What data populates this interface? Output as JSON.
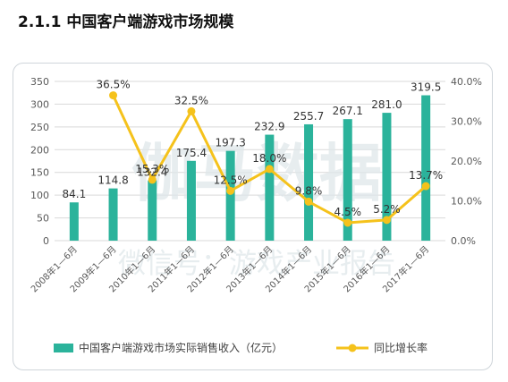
{
  "title": "2.1.1 中国客户端游戏市场规模",
  "watermark": {
    "line1": "伽马数据",
    "line2": "微信号：游戏产业报告"
  },
  "colors": {
    "bar": "#2bb39b",
    "line": "#f5c21b",
    "grid": "#d9d9d9",
    "text": "#595959"
  },
  "chart_data": {
    "type": "bar+line",
    "categories": [
      "2008年1—6月",
      "2009年1—6月",
      "2010年1—6月",
      "2011年1—6月",
      "2012年1—6月",
      "2013年1—6月",
      "2014年1—6月",
      "2015年1—6月",
      "2016年1—6月",
      "2017年1—6月"
    ],
    "series": [
      {
        "name": "中国客户端游戏市场实际销售收入（亿元）",
        "type": "bar",
        "axis": "left",
        "values": [
          84.1,
          114.8,
          132.4,
          175.4,
          197.3,
          232.9,
          255.7,
          267.1,
          281.0,
          319.5
        ],
        "labels": [
          "84.1",
          "114.8",
          "132.4",
          "175.4",
          "197.3",
          "232.9",
          "255.7",
          "267.1",
          "281.0",
          "319.5"
        ]
      },
      {
        "name": "同比增长率",
        "type": "line",
        "axis": "right",
        "values": [
          null,
          36.5,
          15.3,
          32.5,
          12.5,
          18.0,
          9.8,
          4.5,
          5.2,
          13.7
        ],
        "labels": [
          "",
          "36.5%",
          "15.3%",
          "32.5%",
          "12.5%",
          "18.0%",
          "9.8%",
          "4.5%",
          "5.2%",
          "13.7%"
        ]
      }
    ],
    "y_left": {
      "min": 0,
      "max": 350,
      "ticks": [
        "0",
        "50",
        "100",
        "150",
        "200",
        "250",
        "300",
        "350"
      ]
    },
    "y_right": {
      "min": 0,
      "max": 40,
      "ticks": [
        "0.0%",
        "10.0%",
        "20.0%",
        "30.0%",
        "40.0%"
      ]
    },
    "grid": true,
    "legend": "bottom"
  }
}
